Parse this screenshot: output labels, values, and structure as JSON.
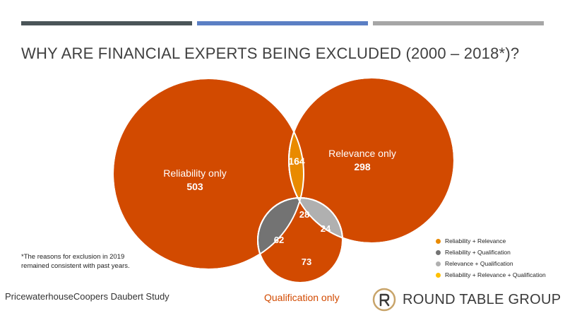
{
  "title": "WHY ARE FINANCIAL EXPERTS BEING EXCLUDED (2000 – 2018*)?",
  "colors": {
    "bar_dark": "#4a5558",
    "bar_blue": "#5b7fc4",
    "bar_gray": "#a6a6a6",
    "main_orange": "#d24a00",
    "rel_rel": "#e98a00",
    "rel_qual": "#737373",
    "relv_qual": "#b0b0b0",
    "all_three": "#ffc000"
  },
  "venn": {
    "reliability_only": {
      "label": "Reliability only",
      "value": "503"
    },
    "relevance_only": {
      "label": "Relevance only",
      "value": "298"
    },
    "reliability_relevance": {
      "value": "164"
    },
    "all_three": {
      "value": "28"
    },
    "relevance_qualification": {
      "value": "24"
    },
    "reliability_qualification": {
      "value": "62"
    },
    "qualification_only": {
      "value": "73"
    }
  },
  "qualification_label": "Qualification only",
  "legend": [
    {
      "label": "Reliability + Relevance",
      "color": "#e98a00"
    },
    {
      "label": "Reliability + Qualification",
      "color": "#737373"
    },
    {
      "label": "Relevance + Qualification",
      "color": "#b0b0b0"
    },
    {
      "label": "Reliability + Relevance + Qualification",
      "color": "#ffc000"
    }
  ],
  "footnote": {
    "line1": "*The reasons for exclusion in 2019",
    "line2": "remained consistent with past years."
  },
  "source": "PricewaterhouseCoopers Daubert Study",
  "brand": "ROUND TABLE GROUP"
}
